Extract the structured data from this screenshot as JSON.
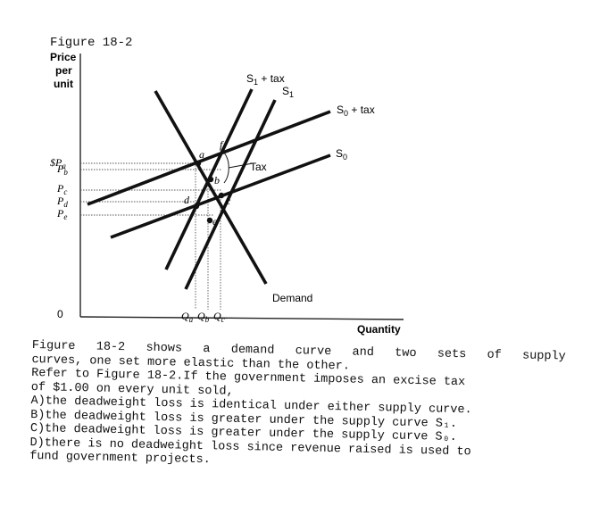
{
  "figure_label": "Figure 18-2",
  "chart_data": {
    "type": "line",
    "title": "",
    "ylabel": [
      "Price",
      "per",
      "unit"
    ],
    "xlabel": "Quantity",
    "origin_label": "0",
    "price_ticks": [
      "$P",
      "P",
      "P",
      "P",
      "P"
    ],
    "price_subs": [
      "a",
      "b",
      "c",
      "d",
      "e"
    ],
    "quantity_ticks": [
      "Q",
      "Q",
      "Q"
    ],
    "quantity_subs": [
      "a",
      "b",
      "c"
    ],
    "series": [
      {
        "name": "Demand"
      },
      {
        "name": "S",
        "sub": "0"
      },
      {
        "name": "S",
        "sub": "0",
        "suffix": " + tax"
      },
      {
        "name": "S",
        "sub": "1"
      },
      {
        "name": "S",
        "sub": "1",
        "suffix": " + tax"
      }
    ],
    "points": [
      "a",
      "b",
      "c",
      "d",
      "e",
      "f"
    ],
    "annotation": "Tax"
  },
  "question": {
    "lines": [
      "Figure 18-2 shows a demand curve and two sets of supply",
      "curves, one set more elastic than the other.",
      "Refer to Figure 18-2.If the government imposes an excise tax",
      "of $1.00 on every unit sold,"
    ],
    "options": [
      {
        "letter": "A)",
        "text": "the deadweight loss is identical under either supply curve."
      },
      {
        "letter": "B)",
        "text": "the deadweight loss is greater under the supply curve S₁."
      },
      {
        "letter": "C)",
        "text": "the deadweight loss is greater under the supply curve S₀."
      },
      {
        "letter": "D)",
        "text": "there is no deadweight loss since revenue raised is used to"
      }
    ],
    "continuation": "fund government projects."
  }
}
